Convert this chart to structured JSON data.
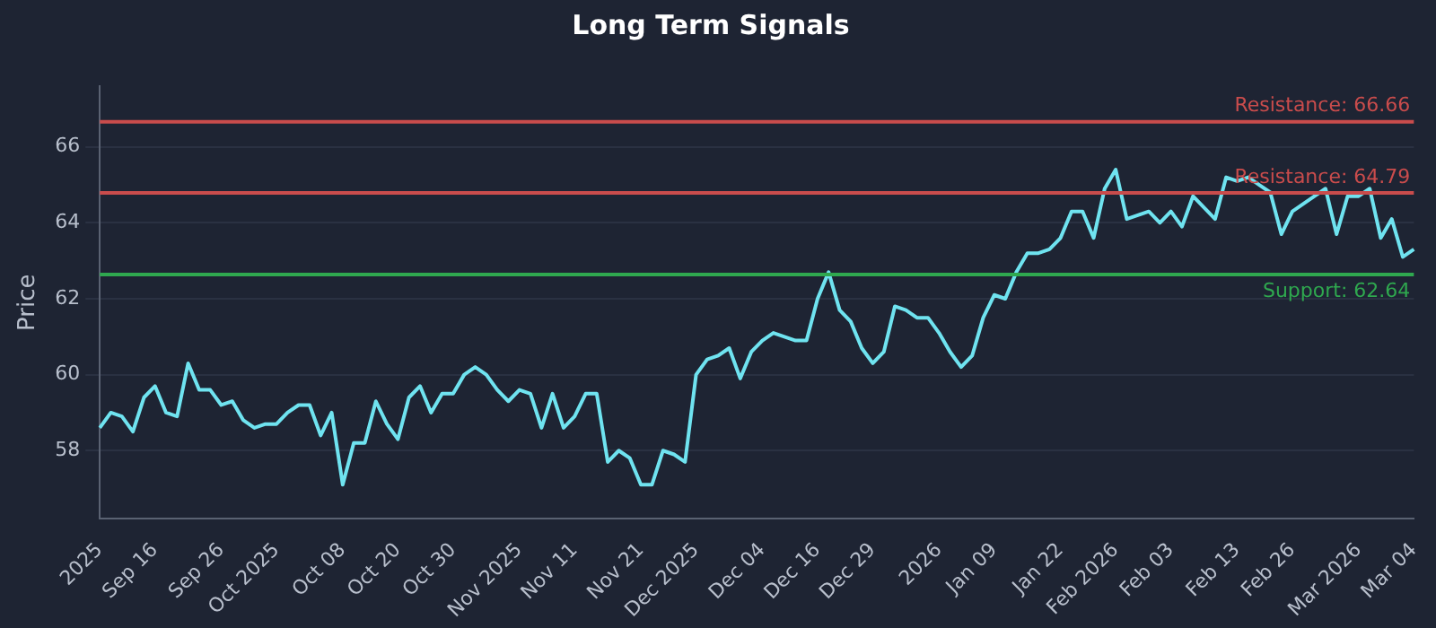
{
  "chart_data": {
    "type": "line",
    "title": "Long Term Signals",
    "ylabel": "Price",
    "categories": [
      "2025",
      null,
      null,
      null,
      null,
      "Sep 16",
      null,
      null,
      null,
      null,
      null,
      "Sep 26",
      null,
      null,
      null,
      null,
      "Oct 2025",
      null,
      null,
      null,
      null,
      null,
      "Oct 08",
      null,
      null,
      null,
      null,
      "Oct 20",
      null,
      null,
      null,
      null,
      "Oct 30",
      null,
      null,
      null,
      null,
      null,
      "Nov 2025",
      null,
      null,
      null,
      null,
      "Nov 11",
      null,
      null,
      null,
      null,
      null,
      "Nov 21",
      null,
      null,
      null,
      null,
      "Dec 2025",
      null,
      null,
      null,
      null,
      null,
      "Dec 04",
      null,
      null,
      null,
      null,
      "Dec 16",
      null,
      null,
      null,
      null,
      "Dec 29",
      null,
      null,
      null,
      null,
      null,
      "2026",
      null,
      null,
      null,
      null,
      "Jan 09",
      null,
      null,
      null,
      null,
      null,
      "Jan 22",
      null,
      null,
      null,
      null,
      "Feb 2026",
      null,
      null,
      null,
      null,
      "Feb 03",
      null,
      null,
      null,
      null,
      null,
      "Feb 13",
      null,
      null,
      null,
      null,
      "Feb 26",
      null,
      null,
      null,
      null,
      null,
      "Mar 2026",
      null,
      null,
      null,
      null,
      "Mar 04"
    ],
    "series": [
      {
        "color": "#6fe3f0",
        "values": [
          58.6,
          59.0,
          58.9,
          58.5,
          59.4,
          59.7,
          59.0,
          58.9,
          60.3,
          59.6,
          59.6,
          59.2,
          59.3,
          58.8,
          58.6,
          58.7,
          58.7,
          59.0,
          59.2,
          59.2,
          58.4,
          59.0,
          57.1,
          58.2,
          58.2,
          59.3,
          58.7,
          58.3,
          59.4,
          59.7,
          59.0,
          59.5,
          59.5,
          60.0,
          60.2,
          60.0,
          59.6,
          59.3,
          59.6,
          59.5,
          58.6,
          59.5,
          58.6,
          58.9,
          59.5,
          59.5,
          57.7,
          58.0,
          57.8,
          57.1,
          57.1,
          58.0,
          57.9,
          57.7,
          60.0,
          60.4,
          60.5,
          60.7,
          59.9,
          60.6,
          60.9,
          61.1,
          61.0,
          60.9,
          60.9,
          62.0,
          62.7,
          61.7,
          61.4,
          60.7,
          60.3,
          60.6,
          61.8,
          61.7,
          61.5,
          61.5,
          61.1,
          60.6,
          60.2,
          60.5,
          61.5,
          62.1,
          62.0,
          62.7,
          63.2,
          63.2,
          63.3,
          63.6,
          64.3,
          64.3,
          63.6,
          64.9,
          65.4,
          64.1,
          64.2,
          64.3,
          64.0,
          64.3,
          63.9,
          64.7,
          64.4,
          64.1,
          65.2,
          65.1,
          65.2,
          65.0,
          64.8,
          63.7,
          64.3,
          64.5,
          64.7,
          64.9,
          63.7,
          64.7,
          64.7,
          64.9,
          63.6,
          64.1,
          63.1,
          63.3
        ]
      }
    ],
    "ylim": [
      56.2,
      67.6
    ],
    "yticks": [
      58,
      60,
      62,
      64,
      66
    ],
    "grid": "y",
    "marker": "none",
    "line_style": "solid",
    "ref_lines": [
      {
        "axis": "y",
        "value": 66.66,
        "label": "Resistance: 66.66",
        "color": "#c94c4c"
      },
      {
        "axis": "y",
        "value": 64.79,
        "label": "Resistance: 64.79",
        "color": "#c94c4c"
      },
      {
        "axis": "y",
        "value": 62.64,
        "label": "Support: 62.64",
        "color": "#2fa84f"
      }
    ]
  }
}
